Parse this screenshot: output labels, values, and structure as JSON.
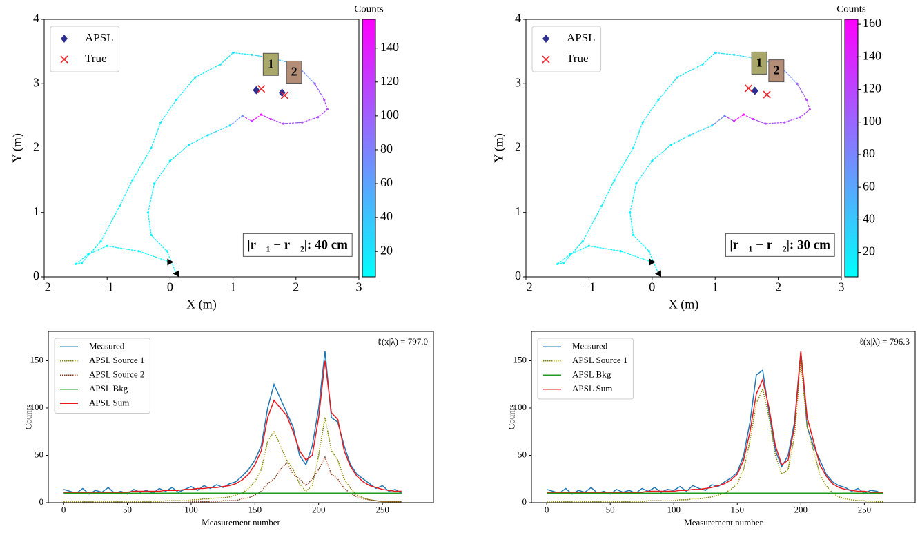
{
  "chart_data": [
    {
      "type": "scatter",
      "xlabel": "X (m)",
      "ylabel": "Y (m)",
      "xlim": [
        -2,
        3
      ],
      "ylim": [
        0,
        4
      ],
      "xticks": [
        {
          "value": -2,
          "label": "−2"
        },
        {
          "value": -1,
          "label": "−1"
        },
        0,
        1,
        2,
        3
      ],
      "yticks": [
        0,
        1,
        2,
        3,
        4
      ],
      "legend": "upper left",
      "colormap": "cool",
      "colorbar": {
        "label": "Counts",
        "clim": [
          5,
          157
        ],
        "ticks": [
          20,
          40,
          60,
          80,
          100,
          120,
          140
        ]
      },
      "path": {
        "x": [
          0.0,
          -0.5,
          -1.0,
          -1.3,
          -1.5,
          -1.4,
          -1.1,
          -0.8,
          -0.6,
          -0.3,
          -0.15,
          0.1,
          0.4,
          0.8,
          1.0,
          1.3,
          1.6,
          2.0,
          2.3,
          2.45,
          2.5,
          2.35,
          2.1,
          1.8,
          1.6,
          1.45,
          1.3,
          1.15,
          0.95,
          0.6,
          0.3,
          0.0,
          -0.25,
          -0.35,
          -0.3,
          -0.05,
          0.1
        ],
        "y": [
          0.23,
          0.4,
          0.48,
          0.35,
          0.2,
          0.22,
          0.55,
          1.1,
          1.5,
          2.0,
          2.4,
          2.75,
          3.1,
          3.3,
          3.48,
          3.45,
          3.4,
          3.3,
          3.0,
          2.75,
          2.6,
          2.48,
          2.4,
          2.38,
          2.45,
          2.52,
          2.42,
          2.5,
          2.35,
          2.2,
          2.05,
          1.8,
          1.45,
          1.0,
          0.65,
          0.4,
          0.05
        ],
        "values": [
          10,
          10,
          10,
          10,
          10,
          10,
          10,
          12,
          12,
          14,
          15,
          16,
          18,
          20,
          22,
          28,
          45,
          70,
          100,
          110,
          115,
          110,
          105,
          110,
          130,
          150,
          120,
          70,
          30,
          20,
          18,
          15,
          14,
          12,
          10,
          10,
          10
        ]
      },
      "series": [
        {
          "name": "APSL",
          "color": "#2e2e8f",
          "marker": "diamond",
          "x": [
            1.37,
            1.78
          ],
          "y": [
            2.9,
            2.86
          ]
        },
        {
          "name": "True",
          "color": "#e8262b",
          "marker": "x",
          "x": [
            1.45,
            1.82
          ],
          "y": [
            2.92,
            2.82
          ]
        }
      ],
      "sources": [
        {
          "label": "1",
          "x": 1.6,
          "y": 3.3,
          "color": "#a9a76a"
        },
        {
          "label": "2",
          "x": 1.97,
          "y": 3.18,
          "color": "#b48d77"
        }
      ],
      "annotation": "|r⃗₁ − r⃗₂|: 40 cm"
    },
    {
      "type": "scatter",
      "xlabel": "X (m)",
      "ylabel": "Y (m)",
      "xlim": [
        -2,
        3
      ],
      "ylim": [
        0,
        4
      ],
      "xticks": [
        {
          "value": -2,
          "label": "−2"
        },
        {
          "value": -1,
          "label": "−1"
        },
        0,
        1,
        2,
        3
      ],
      "yticks": [
        0,
        1,
        2,
        3,
        4
      ],
      "legend": "upper left",
      "colormap": "cool",
      "colorbar": {
        "label": "Counts",
        "clim": [
          5,
          163
        ],
        "ticks": [
          20,
          40,
          60,
          80,
          100,
          120,
          140,
          160
        ]
      },
      "path": {
        "x": [
          0.0,
          -0.5,
          -1.0,
          -1.3,
          -1.5,
          -1.4,
          -1.1,
          -0.8,
          -0.6,
          -0.3,
          -0.15,
          0.1,
          0.4,
          0.8,
          1.0,
          1.3,
          1.6,
          2.0,
          2.3,
          2.45,
          2.5,
          2.35,
          2.1,
          1.8,
          1.6,
          1.45,
          1.3,
          1.15,
          0.95,
          0.6,
          0.3,
          0.0,
          -0.25,
          -0.35,
          -0.3,
          -0.05,
          0.1
        ],
        "y": [
          0.23,
          0.4,
          0.48,
          0.35,
          0.2,
          0.22,
          0.55,
          1.1,
          1.5,
          2.0,
          2.4,
          2.75,
          3.1,
          3.3,
          3.48,
          3.45,
          3.4,
          3.3,
          3.0,
          2.75,
          2.6,
          2.48,
          2.4,
          2.38,
          2.45,
          2.52,
          2.42,
          2.5,
          2.35,
          2.2,
          2.05,
          1.8,
          1.45,
          1.0,
          0.65,
          0.4,
          0.05
        ],
        "values": [
          10,
          10,
          10,
          10,
          10,
          10,
          10,
          12,
          12,
          14,
          15,
          16,
          18,
          20,
          22,
          28,
          45,
          75,
          105,
          115,
          120,
          115,
          110,
          115,
          135,
          160,
          125,
          75,
          30,
          20,
          18,
          15,
          14,
          12,
          10,
          10,
          10
        ]
      },
      "series": [
        {
          "name": "APSL",
          "color": "#2e2e8f",
          "marker": "diamond",
          "x": [
            1.63
          ],
          "y": [
            2.89
          ]
        },
        {
          "name": "True",
          "color": "#e8262b",
          "marker": "x",
          "x": [
            1.53,
            1.82
          ],
          "y": [
            2.93,
            2.83
          ]
        }
      ],
      "sources": [
        {
          "label": "1",
          "x": 1.7,
          "y": 3.32,
          "color": "#a9a76a"
        },
        {
          "label": "2",
          "x": 1.97,
          "y": 3.2,
          "color": "#b48d77"
        }
      ],
      "annotation": "|r⃗₁ − r⃗₂|: 30 cm"
    },
    {
      "type": "line",
      "xlabel": "Measurement number",
      "ylabel": "Counts",
      "xlim": [
        -12,
        290
      ],
      "ylim": [
        0,
        181
      ],
      "xticks": [
        0,
        50,
        100,
        150,
        200,
        250
      ],
      "yticks": [
        0,
        50,
        100,
        150
      ],
      "legend": "upper left",
      "annotation": "ℓ(x|λ) = 797.0",
      "x": [
        0,
        5,
        10,
        15,
        20,
        25,
        30,
        35,
        40,
        45,
        50,
        55,
        60,
        65,
        70,
        75,
        80,
        85,
        90,
        95,
        100,
        105,
        110,
        115,
        120,
        125,
        130,
        135,
        140,
        145,
        150,
        155,
        160,
        165,
        170,
        175,
        180,
        185,
        190,
        195,
        200,
        205,
        210,
        215,
        220,
        225,
        230,
        235,
        240,
        245,
        250,
        255,
        260,
        265
      ],
      "series": [
        {
          "name": "Measured",
          "color": "#1f77b4",
          "style": "solid",
          "values": [
            14,
            12,
            10,
            15,
            9,
            13,
            11,
            16,
            10,
            12,
            9,
            14,
            11,
            13,
            10,
            15,
            12,
            16,
            11,
            14,
            17,
            13,
            18,
            15,
            19,
            16,
            20,
            22,
            28,
            35,
            45,
            60,
            100,
            125,
            110,
            95,
            80,
            50,
            40,
            60,
            100,
            160,
            90,
            85,
            60,
            40,
            30,
            25,
            20,
            15,
            18,
            12,
            14,
            10
          ]
        },
        {
          "name": "APSL Source 1",
          "color": "#8a8a00",
          "style": "dotted",
          "values": [
            1,
            1,
            1,
            1,
            1,
            1,
            1,
            1,
            1,
            1,
            1,
            1,
            1,
            1,
            1,
            1,
            2,
            2,
            2,
            2,
            3,
            3,
            4,
            4,
            5,
            5,
            6,
            8,
            10,
            15,
            22,
            35,
            65,
            75,
            60,
            45,
            35,
            20,
            12,
            18,
            50,
            90,
            55,
            45,
            25,
            15,
            8,
            5,
            3,
            2,
            1,
            1,
            1,
            1
          ]
        },
        {
          "name": "APSL Source 2",
          "color": "#8b3a1a",
          "style": "dotted",
          "values": [
            0,
            0,
            0,
            0,
            0,
            0,
            0,
            0,
            0,
            0,
            0,
            0,
            0,
            0,
            0,
            0,
            0,
            0,
            0,
            0,
            1,
            1,
            1,
            1,
            1,
            2,
            2,
            2,
            4,
            5,
            8,
            12,
            20,
            25,
            35,
            42,
            30,
            25,
            18,
            25,
            35,
            48,
            30,
            25,
            15,
            10,
            6,
            4,
            3,
            2,
            1,
            1,
            1,
            1
          ]
        },
        {
          "name": "APSL Bkg",
          "color": "#1f9a1f",
          "style": "solid",
          "values": [
            10,
            10,
            10,
            10,
            10,
            10,
            10,
            10,
            10,
            10,
            10,
            10,
            10,
            10,
            10,
            10,
            10,
            10,
            10,
            10,
            10,
            10,
            10,
            10,
            10,
            10,
            10,
            10,
            10,
            10,
            10,
            10,
            10,
            10,
            10,
            10,
            10,
            10,
            10,
            10,
            10,
            10,
            10,
            10,
            10,
            10,
            10,
            10,
            10,
            10,
            10,
            10,
            10,
            10
          ]
        },
        {
          "name": "APSL Sum",
          "color": "#e8191c",
          "style": "solid",
          "values": [
            11,
            11,
            11,
            11,
            11,
            11,
            11,
            11,
            11,
            11,
            11,
            12,
            12,
            12,
            12,
            12,
            13,
            13,
            13,
            14,
            14,
            15,
            15,
            16,
            16,
            17,
            18,
            20,
            24,
            30,
            40,
            55,
            90,
            108,
            100,
            92,
            75,
            55,
            45,
            50,
            90,
            150,
            95,
            88,
            55,
            38,
            28,
            22,
            18,
            16,
            14,
            13,
            12,
            12
          ]
        }
      ]
    },
    {
      "type": "line",
      "xlabel": "Measurement number",
      "ylabel": "Counts",
      "xlim": [
        -12,
        290
      ],
      "ylim": [
        0,
        181
      ],
      "xticks": [
        0,
        50,
        100,
        150,
        200,
        250
      ],
      "yticks": [
        0,
        50,
        100,
        150
      ],
      "legend": "upper left",
      "annotation": "ℓ(x|λ) = 796.3",
      "x": [
        0,
        5,
        10,
        15,
        20,
        25,
        30,
        35,
        40,
        45,
        50,
        55,
        60,
        65,
        70,
        75,
        80,
        85,
        90,
        95,
        100,
        105,
        110,
        115,
        120,
        125,
        130,
        135,
        140,
        145,
        150,
        155,
        160,
        165,
        170,
        175,
        180,
        185,
        190,
        195,
        200,
        205,
        210,
        215,
        220,
        225,
        230,
        235,
        240,
        245,
        250,
        255,
        260,
        265
      ],
      "series": [
        {
          "name": "Measured",
          "color": "#1f77b4",
          "style": "solid",
          "values": [
            14,
            12,
            10,
            15,
            9,
            13,
            11,
            16,
            10,
            12,
            9,
            14,
            11,
            13,
            10,
            15,
            12,
            16,
            11,
            14,
            13,
            17,
            12,
            18,
            15,
            13,
            19,
            17,
            22,
            26,
            32,
            50,
            85,
            135,
            140,
            95,
            55,
            38,
            50,
            85,
            160,
            80,
            60,
            45,
            30,
            22,
            18,
            16,
            12,
            15,
            10,
            13,
            12,
            9
          ]
        },
        {
          "name": "APSL Source 1",
          "color": "#8a8a00",
          "style": "dotted",
          "values": [
            1,
            1,
            1,
            1,
            1,
            1,
            1,
            1,
            1,
            1,
            1,
            1,
            1,
            1,
            1,
            1,
            2,
            2,
            2,
            2,
            2,
            3,
            3,
            4,
            4,
            5,
            6,
            8,
            10,
            14,
            20,
            35,
            65,
            105,
            120,
            90,
            50,
            30,
            35,
            70,
            150,
            80,
            55,
            30,
            18,
            10,
            6,
            4,
            3,
            2,
            2,
            1,
            1,
            1
          ]
        },
        {
          "name": "APSL Bkg",
          "color": "#1f9a1f",
          "style": "solid",
          "values": [
            10,
            10,
            10,
            10,
            10,
            10,
            10,
            10,
            10,
            10,
            10,
            10,
            10,
            10,
            10,
            10,
            10,
            10,
            10,
            10,
            10,
            10,
            10,
            10,
            10,
            10,
            10,
            10,
            10,
            10,
            10,
            10,
            10,
            10,
            10,
            10,
            10,
            10,
            10,
            10,
            10,
            10,
            10,
            10,
            10,
            10,
            10,
            10,
            10,
            10,
            10,
            10,
            10,
            10
          ]
        },
        {
          "name": "APSL Sum",
          "color": "#e8191c",
          "style": "solid",
          "values": [
            11,
            11,
            11,
            11,
            11,
            11,
            11,
            11,
            11,
            11,
            11,
            11,
            11,
            11,
            11,
            11,
            12,
            12,
            12,
            12,
            12,
            13,
            13,
            14,
            14,
            15,
            16,
            18,
            20,
            24,
            30,
            45,
            75,
            115,
            130,
            100,
            60,
            40,
            45,
            80,
            160,
            90,
            65,
            40,
            28,
            20,
            16,
            14,
            13,
            12,
            12,
            11,
            11,
            11
          ]
        }
      ]
    }
  ]
}
